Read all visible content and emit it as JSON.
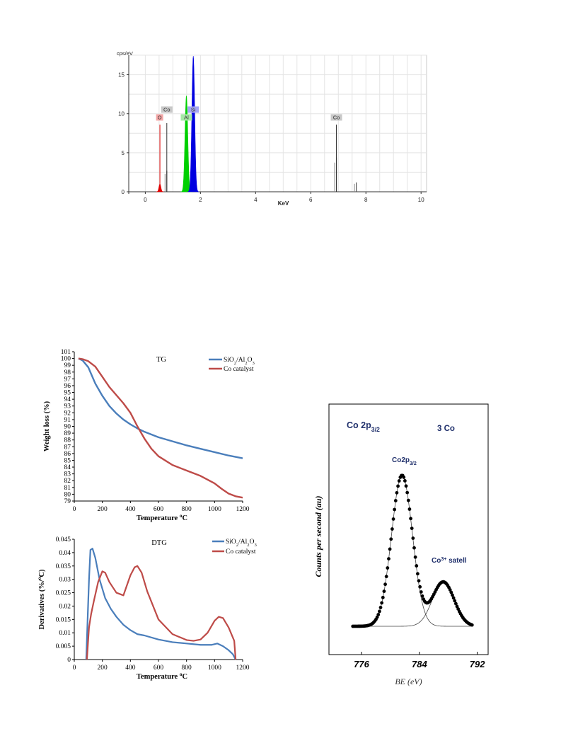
{
  "eds": {
    "ylabel": "cps/eV",
    "xlabel": "KeV",
    "x_ticks": [
      "0",
      "2",
      "4",
      "6",
      "8",
      "10"
    ],
    "y_ticks": [
      "0",
      "5",
      "10",
      "15"
    ],
    "xlim": [
      -0.6,
      10.2
    ],
    "ylim": [
      0,
      17.5
    ],
    "labels": [
      {
        "text": "O",
        "x": 0.52,
        "y": 9.3,
        "color": "#f4a6a6"
      },
      {
        "text": "Co",
        "x": 0.78,
        "y": 10.3,
        "color": "#c8c8c8"
      },
      {
        "text": "Al",
        "x": 1.49,
        "y": 9.3,
        "color": "#a6e8a6"
      },
      {
        "text": "Si",
        "x": 1.74,
        "y": 10.3,
        "color": "#a6a6f4"
      },
      {
        "text": "Co",
        "x": 6.93,
        "y": 9.3,
        "color": "#c8c8c8"
      }
    ]
  },
  "tg": {
    "title": "TG",
    "ylabel": "Weight loss (%)",
    "xlabel_main": "Temperature ",
    "xlabel_sup": "o",
    "xlabel_unit": "C",
    "legend": [
      {
        "main": "SiO",
        "s1": "2",
        "mid": "/Al",
        "s2": "2",
        "mid2": "O",
        "s3": "3",
        "color": "#4a7ebb"
      },
      {
        "main": "Co catalyst",
        "color": "#be4b48"
      }
    ],
    "x_ticks": [
      "0",
      "200",
      "400",
      "600",
      "800",
      "1000",
      "1200"
    ],
    "y_ticks": [
      "79",
      "80",
      "81",
      "82",
      "83",
      "84",
      "85",
      "86",
      "87",
      "88",
      "89",
      "90",
      "91",
      "92",
      "93",
      "94",
      "95",
      "96",
      "97",
      "98",
      "99",
      "100",
      "101"
    ]
  },
  "dtg": {
    "title": "DTG",
    "ylabel_main": "Derivatives (%/",
    "ylabel_sup": "o",
    "ylabel_end": "C)",
    "xlabel_main": "Temperature ",
    "xlabel_sup": "o",
    "xlabel_unit": "C",
    "legend": [
      {
        "main": "SiO",
        "s1": "2",
        "mid": "/Al",
        "s2": "2",
        "mid2": "O",
        "s3": "3",
        "color": "#4a7ebb"
      },
      {
        "main": "Co catalyst",
        "color": "#be4b48"
      }
    ],
    "x_ticks": [
      "0",
      "200",
      "400",
      "600",
      "800",
      "1000",
      "1200"
    ],
    "y_ticks": [
      "0",
      "0.005",
      "0.01",
      "0.015",
      "0.02",
      "0.025",
      "0.03",
      "0.035",
      "0.04",
      "0.045"
    ]
  },
  "xps": {
    "title_main": "Co 2p",
    "title_sub": "3/2",
    "species": "3 Co",
    "peak1_main": "Co2p",
    "peak1_sub": "3/2",
    "peak2_main": "Co",
    "peak2_sup": "3+",
    "peak2_end": " satell",
    "ylabel": "Counts per second (au)",
    "xlabel": "BE (eV)",
    "x_ticks": [
      "776",
      "784",
      "792"
    ]
  },
  "chart_data": [
    {
      "type": "bar",
      "title": "",
      "xlabel": "KeV",
      "ylabel": "cps/eV",
      "xlim": [
        -0.6,
        10.2
      ],
      "ylim": [
        0,
        17.5
      ],
      "series": [
        {
          "name": "O",
          "peaks": [
            {
              "x": 0.53,
              "height": 1.0,
              "line": 8.6
            }
          ],
          "color": "#e00000"
        },
        {
          "name": "Co",
          "peaks": [
            {
              "x": 0.78,
              "height": 2.7,
              "line": 8.8
            },
            {
              "x": 6.93,
              "height": 4.4,
              "line": 8.6
            },
            {
              "x": 7.65,
              "height": 1.2
            }
          ],
          "color": "#333333"
        },
        {
          "name": "Al",
          "peaks": [
            {
              "x": 1.49,
              "height": 12.3
            }
          ],
          "color": "#00d000"
        },
        {
          "name": "Si",
          "peaks": [
            {
              "x": 1.74,
              "height": 17.4
            }
          ],
          "color": "#0000e0"
        }
      ]
    },
    {
      "type": "line",
      "title": "TG",
      "xlabel": "Temperature oC",
      "ylabel": "Weight loss (%)",
      "xlim": [
        0,
        1200
      ],
      "ylim": [
        79,
        101
      ],
      "series": [
        {
          "name": "SiO2/Al2O3",
          "x": [
            30,
            60,
            100,
            150,
            200,
            250,
            300,
            350,
            400,
            450,
            500,
            600,
            700,
            800,
            900,
            1000,
            1100,
            1200
          ],
          "y": [
            100,
            99.7,
            98.7,
            96.3,
            94.5,
            93.0,
            91.9,
            91.0,
            90.3,
            89.7,
            89.2,
            88.4,
            87.8,
            87.2,
            86.7,
            86.2,
            85.7,
            85.3
          ]
        },
        {
          "name": "Co catalyst",
          "x": [
            30,
            60,
            100,
            150,
            200,
            250,
            300,
            350,
            400,
            450,
            500,
            550,
            600,
            700,
            800,
            900,
            1000,
            1050,
            1100,
            1150,
            1200
          ],
          "y": [
            100,
            99.9,
            99.6,
            98.8,
            97.3,
            95.8,
            94.6,
            93.4,
            92.0,
            90.0,
            88.2,
            86.7,
            85.6,
            84.3,
            83.5,
            82.7,
            81.6,
            80.8,
            80.1,
            79.7,
            79.5
          ]
        }
      ]
    },
    {
      "type": "line",
      "title": "DTG",
      "xlabel": "Temperature oC",
      "ylabel": "Derivatives (%/oC)",
      "xlim": [
        0,
        1200
      ],
      "ylim": [
        0,
        0.045
      ],
      "series": [
        {
          "name": "SiO2/Al2O3",
          "x": [
            85,
            95,
            105,
            115,
            130,
            150,
            180,
            220,
            260,
            300,
            350,
            400,
            450,
            500,
            600,
            700,
            800,
            900,
            980,
            1020,
            1060,
            1100,
            1130,
            1150
          ],
          "y": [
            0.0,
            0.015,
            0.03,
            0.041,
            0.0415,
            0.038,
            0.03,
            0.023,
            0.019,
            0.016,
            0.013,
            0.011,
            0.0095,
            0.009,
            0.0075,
            0.0065,
            0.006,
            0.0055,
            0.0055,
            0.006,
            0.005,
            0.0035,
            0.002,
            0.0
          ]
        },
        {
          "name": "Co catalyst",
          "x": [
            90,
            105,
            120,
            140,
            170,
            200,
            220,
            250,
            300,
            350,
            400,
            430,
            450,
            480,
            520,
            600,
            700,
            800,
            850,
            900,
            950,
            1000,
            1030,
            1060,
            1100,
            1140,
            1150
          ],
          "y": [
            0.0,
            0.012,
            0.017,
            0.022,
            0.029,
            0.033,
            0.0325,
            0.029,
            0.025,
            0.024,
            0.0315,
            0.0345,
            0.035,
            0.0325,
            0.0255,
            0.015,
            0.0095,
            0.0073,
            0.007,
            0.0075,
            0.01,
            0.0145,
            0.016,
            0.0155,
            0.012,
            0.007,
            0.0
          ]
        }
      ]
    },
    {
      "type": "scatter",
      "title": "Co 2p3/2",
      "xlabel": "BE (eV)",
      "ylabel": "Counts per second (au)",
      "xlim": [
        771.5,
        793.5
      ],
      "x_ticks": [
        776,
        784,
        792
      ],
      "series": [
        {
          "name": "data",
          "x": [
            775,
            776,
            777,
            778,
            779,
            780,
            781,
            782,
            783,
            784,
            785,
            786,
            787,
            788,
            789,
            790,
            791
          ],
          "y": [
            0.0,
            0.02,
            0.08,
            0.22,
            0.45,
            0.76,
            0.97,
            0.93,
            0.7,
            0.44,
            0.3,
            0.29,
            0.3,
            0.26,
            0.17,
            0.07,
            0.01
          ]
        }
      ],
      "components": [
        {
          "name": "Co2p3/2",
          "center": 781.6,
          "sigma": 1.45,
          "amp": 0.97
        },
        {
          "name": "Co3+ satell",
          "center": 787.3,
          "sigma": 1.5,
          "amp": 0.285
        }
      ]
    }
  ]
}
